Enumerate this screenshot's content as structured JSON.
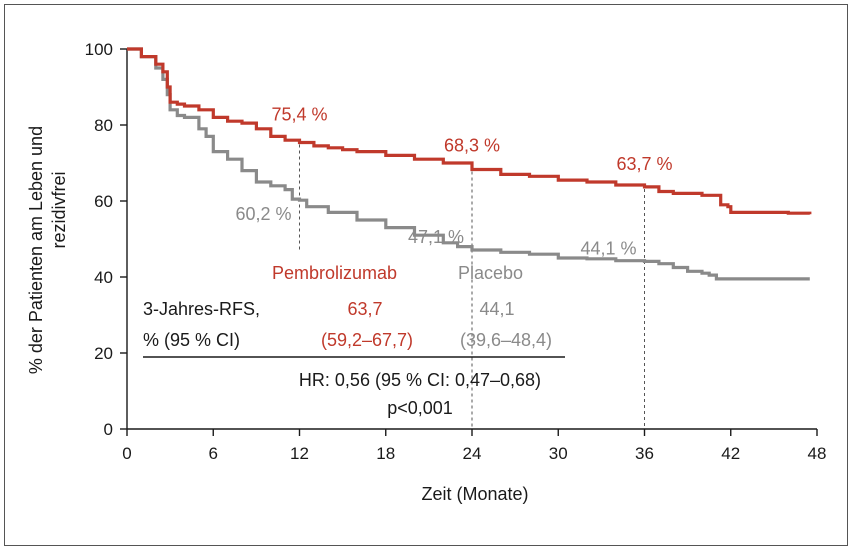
{
  "chart_data": {
    "type": "line",
    "xlabel": "Zeit (Monate)",
    "ylabel_line1": "% der Patienten am Leben und",
    "ylabel_line2": "rezidivfrei",
    "xlim": [
      0,
      48
    ],
    "ylim": [
      0,
      100
    ],
    "xticks": [
      0,
      6,
      12,
      18,
      24,
      30,
      36,
      42,
      48
    ],
    "yticks": [
      0,
      20,
      40,
      60,
      80,
      100
    ],
    "series": [
      {
        "name": "Pembrolizumab",
        "color": "#c0392b",
        "x": [
          0,
          1,
          2,
          2.5,
          2.8,
          3,
          3.5,
          4,
          5,
          6,
          7,
          8,
          9,
          10,
          11,
          12,
          13,
          14,
          15,
          16,
          18,
          20,
          22,
          24,
          26,
          28,
          30,
          32,
          34,
          36,
          37,
          38,
          39,
          40,
          41,
          41.3,
          41.8,
          42,
          44,
          46,
          47.5
        ],
        "y": [
          100,
          98,
          96,
          94,
          90,
          86,
          85.5,
          85,
          84,
          82,
          81,
          80.5,
          79,
          77,
          76,
          75.4,
          74.5,
          74,
          73.5,
          73,
          72,
          71,
          70,
          68.3,
          67,
          66.5,
          65.5,
          65,
          64.2,
          63.7,
          62.5,
          62,
          62,
          61.5,
          61.5,
          59,
          58.5,
          57,
          57,
          56.8,
          56.5
        ]
      },
      {
        "name": "Placebo",
        "color": "#8a8a8a",
        "x": [
          0,
          1,
          2,
          2.5,
          2.8,
          3,
          3.5,
          4,
          5,
          5.5,
          6,
          7,
          8,
          9,
          10,
          11,
          11.5,
          12,
          12.5,
          14,
          16,
          18,
          20,
          22,
          23,
          24,
          26,
          28,
          30,
          32,
          34,
          36,
          37,
          38,
          39,
          40,
          40.5,
          41,
          44,
          47.5
        ],
        "y": [
          100,
          98,
          95,
          92,
          88,
          84,
          82.5,
          82,
          79,
          77,
          73,
          71,
          68,
          65,
          64,
          63,
          60.5,
          60.2,
          58.5,
          57,
          55,
          53,
          51,
          49,
          48,
          47.1,
          46.5,
          46,
          45,
          44.8,
          44.3,
          44.1,
          43.5,
          42.5,
          41.5,
          41,
          40.5,
          39.5,
          39.5,
          39.5
        ]
      }
    ],
    "annotations": {
      "pembro_points": [
        {
          "x": 12,
          "y": 75.4,
          "label": "75,4 %"
        },
        {
          "x": 24,
          "y": 68.3,
          "label": "68,3 %"
        },
        {
          "x": 36,
          "y": 63.7,
          "label": "63,7 %"
        }
      ],
      "placebo_points": [
        {
          "x": 12,
          "y": 60.2,
          "label": "60,2 %"
        },
        {
          "x": 24,
          "y": 47.1,
          "label": "47,1 %"
        },
        {
          "x": 36,
          "y": 44.1,
          "label": "44,1 %"
        }
      ]
    },
    "legend": {
      "pembro": "Pembrolizumab",
      "placebo": "Placebo"
    },
    "table": {
      "row_label_1": "3-Jahres-RFS,",
      "row_label_2": "% (95 % CI)",
      "pembro_value": "63,7",
      "pembro_ci": "(59,2–67,7)",
      "placebo_value": "44,1",
      "placebo_ci": "(39,6–48,4)",
      "hr": "HR: 0,56 (95 % CI: 0,47–0,68)",
      "p": "p<0,001"
    }
  }
}
